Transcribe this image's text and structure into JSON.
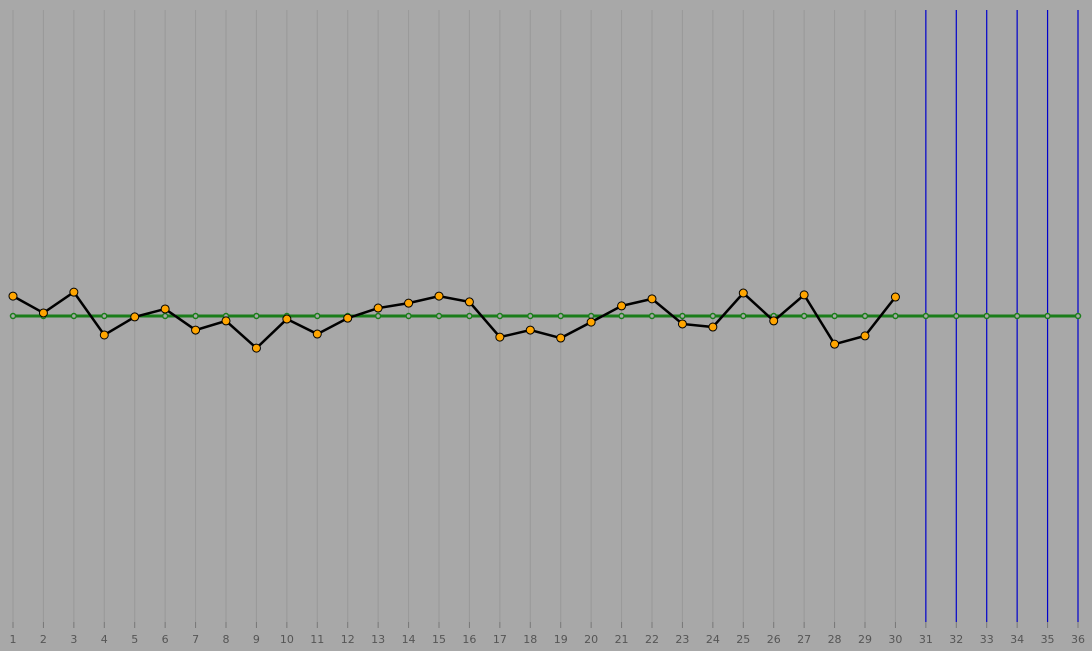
{
  "chart_data": {
    "type": "line",
    "categories": [
      "1",
      "2",
      "3",
      "4",
      "5",
      "6",
      "7",
      "8",
      "9",
      "10",
      "11",
      "12",
      "13",
      "14",
      "15",
      "16",
      "17",
      "18",
      "19",
      "20",
      "21",
      "22",
      "23",
      "24",
      "25",
      "26",
      "27",
      "28",
      "29",
      "30",
      "31",
      "32",
      "33",
      "34",
      "35",
      "36"
    ],
    "series": [
      {
        "color": "#000000",
        "marker_color": "#ffa500",
        "values": [
          0.65,
          0.1,
          0.78,
          -0.62,
          -0.03,
          0.23,
          -0.46,
          -0.16,
          -1.05,
          -0.1,
          -0.59,
          -0.07,
          0.26,
          0.42,
          0.65,
          0.46,
          -0.69,
          -0.46,
          -0.72,
          -0.2,
          0.33,
          0.56,
          -0.26,
          -0.36,
          0.75,
          -0.16,
          0.69,
          -0.92,
          -0.65,
          0.62,
          null,
          null,
          null,
          null,
          null,
          null
        ]
      },
      {
        "color": "#1a7d1a",
        "marker_color": "#1a7d1a",
        "values": [
          0,
          0,
          0,
          0,
          0,
          0,
          0,
          0,
          0,
          0,
          0,
          0,
          0,
          0,
          0,
          0,
          0,
          0,
          0,
          0,
          0,
          0,
          0,
          0,
          0,
          0,
          0,
          0,
          0,
          0,
          0,
          0,
          0,
          0,
          0,
          0
        ]
      }
    ],
    "ylim": [
      -10,
      10
    ],
    "grid": true,
    "empty_highlight_color": "#0000cc"
  }
}
